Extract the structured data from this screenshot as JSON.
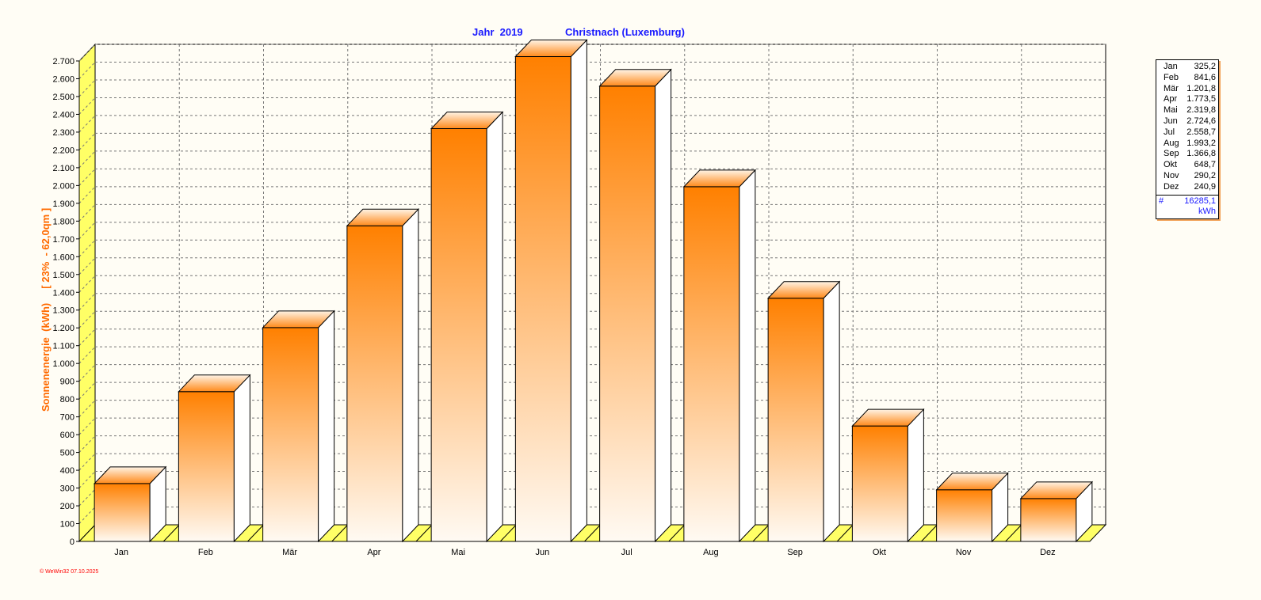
{
  "chart_data": {
    "type": "bar",
    "title": "Jahr  2019",
    "subtitle": "Christnach (Luxemburg)",
    "ylabel": "Sonnenenergie  (kWh)     [ 23%  - 62,0qm ]",
    "xlabel": "",
    "ylim": [
      0,
      2700
    ],
    "ytick_step": 100,
    "grid": true,
    "categories": [
      "Jan",
      "Feb",
      "Mär",
      "Apr",
      "Mai",
      "Jun",
      "Jul",
      "Aug",
      "Sep",
      "Okt",
      "Nov",
      "Dez"
    ],
    "values": [
      325.2,
      841.6,
      1201.8,
      1773.5,
      2319.8,
      2724.6,
      2558.7,
      1993.2,
      1366.8,
      648.7,
      290.2,
      240.9
    ],
    "legend_placement": "right",
    "colors": {
      "bar_top": "#ff8000",
      "bar_bottom": "#fffaf3",
      "bar_side": "#ffffff",
      "floor": "#ffff66",
      "title": "#1a1aff",
      "ylabel": "#ff6a00"
    }
  },
  "legend": {
    "rows": [
      {
        "month": "Jan",
        "value": "325,2"
      },
      {
        "month": "Feb",
        "value": "841,6"
      },
      {
        "month": "Mär",
        "value": "1.201,8"
      },
      {
        "month": "Apr",
        "value": "1.773,5"
      },
      {
        "month": "Mai",
        "value": "2.319,8"
      },
      {
        "month": "Jun",
        "value": "2.724,6"
      },
      {
        "month": "Jul",
        "value": "2.558,7"
      },
      {
        "month": "Aug",
        "value": "1.993,2"
      },
      {
        "month": "Sep",
        "value": "1.366,8"
      },
      {
        "month": "Okt",
        "value": "648,7"
      },
      {
        "month": "Nov",
        "value": "290,2"
      },
      {
        "month": "Dez",
        "value": "240,9"
      }
    ],
    "total_symbol": "#",
    "total_value": "16285,1",
    "total_unit": "kWh"
  },
  "footer": "© WeWin32  07.10.2025"
}
